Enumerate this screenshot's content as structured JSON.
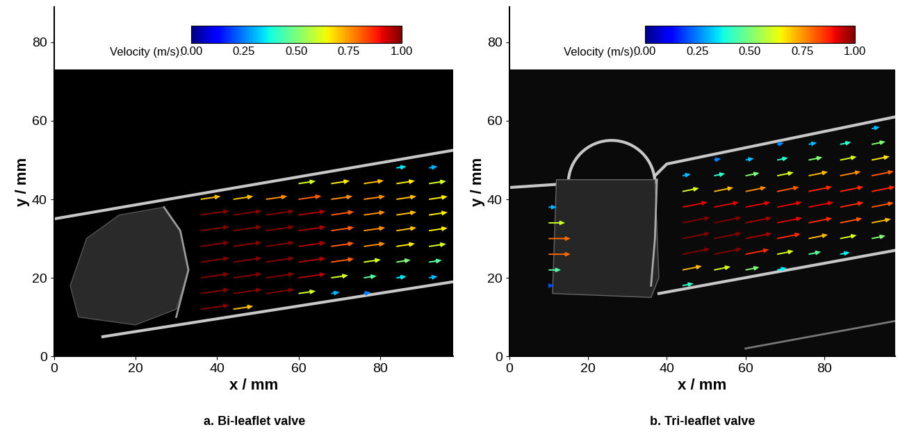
{
  "chart_data": [
    {
      "type": "quiver",
      "title": "a. Bi-leaflet valve",
      "x_label": "x / mm",
      "y_label": "y / mm",
      "xlim": [
        0,
        98
      ],
      "ylim": [
        0,
        89
      ],
      "xticks": [
        0,
        20,
        40,
        60,
        80
      ],
      "yticks": [
        0,
        20,
        40,
        60,
        80
      ],
      "color": "jet",
      "colorbar": {
        "label": "Velocity (m/s):",
        "range": [
          0,
          1
        ],
        "ticks": [
          {
            "value": 0,
            "label": "0.00"
          },
          {
            "value": 0.25,
            "label": "0.25"
          },
          {
            "value": 0.5,
            "label": "0.50"
          },
          {
            "value": 0.75,
            "label": "0.75"
          },
          {
            "value": 1,
            "label": "1.00"
          }
        ]
      },
      "x": [
        36,
        44,
        52,
        60,
        68,
        76,
        84,
        92
      ],
      "y": [
        12,
        16,
        20,
        24,
        28,
        32,
        36,
        40,
        44,
        48
      ],
      "u": [
        [
          1.0,
          0.7,
          null,
          null,
          null,
          null,
          null,
          null
        ],
        [
          1.0,
          1.0,
          1.0,
          0.6,
          0.3,
          0.25,
          null,
          null
        ],
        [
          1.0,
          1.0,
          1.0,
          0.95,
          0.6,
          0.45,
          0.35,
          0.3
        ],
        [
          1.0,
          1.0,
          1.0,
          0.95,
          0.8,
          0.6,
          0.5,
          0.45
        ],
        [
          1.0,
          1.0,
          1.0,
          0.95,
          0.8,
          0.75,
          0.65,
          0.6
        ],
        [
          1.0,
          1.0,
          1.0,
          0.95,
          0.8,
          0.75,
          0.7,
          0.65
        ],
        [
          1.0,
          1.0,
          1.0,
          0.95,
          0.8,
          0.75,
          0.7,
          0.65
        ],
        [
          0.7,
          0.7,
          0.75,
          0.8,
          0.75,
          0.75,
          0.7,
          0.65
        ],
        [
          null,
          null,
          null,
          0.6,
          0.65,
          0.7,
          0.65,
          0.6
        ],
        [
          null,
          null,
          null,
          null,
          null,
          null,
          0.35,
          0.3
        ]
      ],
      "v": [
        [
          0.15,
          0.11,
          null,
          null,
          null,
          null,
          null,
          null
        ],
        [
          0.15,
          0.15,
          0.15,
          0.09,
          0.05,
          0.04,
          null,
          null
        ],
        [
          0.15,
          0.15,
          0.15,
          0.14,
          0.09,
          0.07,
          0.05,
          0.05
        ],
        [
          0.15,
          0.15,
          0.15,
          0.14,
          0.12,
          0.09,
          0.08,
          0.07
        ],
        [
          0.15,
          0.15,
          0.15,
          0.14,
          0.12,
          0.11,
          0.1,
          0.09
        ],
        [
          0.15,
          0.15,
          0.15,
          0.14,
          0.12,
          0.11,
          0.11,
          0.1
        ],
        [
          0.15,
          0.15,
          0.15,
          0.14,
          0.12,
          0.11,
          0.11,
          0.1
        ],
        [
          0.11,
          0.11,
          0.11,
          0.12,
          0.11,
          0.11,
          0.11,
          0.1
        ],
        [
          null,
          null,
          null,
          0.09,
          0.1,
          0.11,
          0.1,
          0.09
        ],
        [
          null,
          null,
          null,
          null,
          null,
          null,
          0.05,
          0.05
        ]
      ]
    },
    {
      "type": "quiver",
      "title": "b. Tri-leaflet valve",
      "x_label": "x / mm",
      "y_label": "y / mm",
      "xlim": [
        0,
        98
      ],
      "ylim": [
        0,
        89
      ],
      "xticks": [
        0,
        20,
        40,
        60,
        80
      ],
      "yticks": [
        0,
        20,
        40,
        60,
        80
      ],
      "color": "jet",
      "colorbar": {
        "label": "Velocity (m/s):",
        "range": [
          0,
          1
        ],
        "ticks": [
          {
            "value": 0,
            "label": "0.00"
          },
          {
            "value": 0.25,
            "label": "0.25"
          },
          {
            "value": 0.5,
            "label": "0.50"
          },
          {
            "value": 0.75,
            "label": "0.75"
          },
          {
            "value": 1,
            "label": "1.00"
          }
        ]
      },
      "x": [
        10,
        44,
        52,
        60,
        68,
        76,
        84,
        92
      ],
      "y": [
        18,
        22,
        26,
        30,
        34,
        38,
        42,
        46,
        50,
        54,
        58
      ],
      "u": [
        [
          0.2,
          0.4,
          null,
          null,
          null,
          null,
          null,
          null
        ],
        [
          0.45,
          0.7,
          0.6,
          0.5,
          0.35,
          null,
          null,
          null
        ],
        [
          0.8,
          1.0,
          1.0,
          0.85,
          0.6,
          0.45,
          0.35,
          null
        ],
        [
          0.8,
          1.0,
          1.0,
          0.95,
          0.85,
          0.7,
          0.6,
          0.5
        ],
        [
          0.6,
          1.0,
          1.0,
          0.95,
          0.9,
          0.85,
          0.8,
          0.7
        ],
        [
          0.3,
          0.9,
          0.9,
          0.9,
          0.9,
          0.9,
          0.85,
          0.8
        ],
        [
          null,
          0.6,
          0.7,
          0.75,
          0.8,
          0.85,
          0.85,
          0.85
        ],
        [
          null,
          0.3,
          0.4,
          0.5,
          0.6,
          0.7,
          0.75,
          0.8
        ],
        [
          null,
          null,
          0.25,
          0.3,
          0.4,
          0.5,
          0.6,
          0.65
        ],
        [
          null,
          null,
          null,
          null,
          0.25,
          0.3,
          0.4,
          0.5
        ],
        [
          null,
          null,
          null,
          null,
          null,
          null,
          null,
          0.3
        ]
      ],
      "v": [
        [
          0.0,
          0.08,
          null,
          null,
          null,
          null,
          null,
          null
        ],
        [
          0.0,
          0.14,
          0.12,
          0.1,
          0.07,
          null,
          null,
          null
        ],
        [
          0.0,
          0.2,
          0.2,
          0.17,
          0.12,
          0.09,
          0.07,
          null
        ],
        [
          0.0,
          0.2,
          0.2,
          0.19,
          0.17,
          0.14,
          0.12,
          0.1
        ],
        [
          0.0,
          0.2,
          0.2,
          0.19,
          0.18,
          0.17,
          0.16,
          0.14
        ],
        [
          0.0,
          0.18,
          0.18,
          0.18,
          0.18,
          0.18,
          0.17,
          0.16
        ],
        [
          null,
          0.12,
          0.14,
          0.15,
          0.16,
          0.17,
          0.17,
          0.17
        ],
        [
          null,
          0.06,
          0.08,
          0.1,
          0.12,
          0.14,
          0.15,
          0.16
        ],
        [
          null,
          null,
          0.05,
          0.06,
          0.08,
          0.1,
          0.12,
          0.13
        ],
        [
          null,
          null,
          null,
          null,
          0.05,
          0.06,
          0.08,
          0.1
        ],
        [
          null,
          null,
          null,
          null,
          null,
          null,
          null,
          0.06
        ]
      ]
    }
  ]
}
